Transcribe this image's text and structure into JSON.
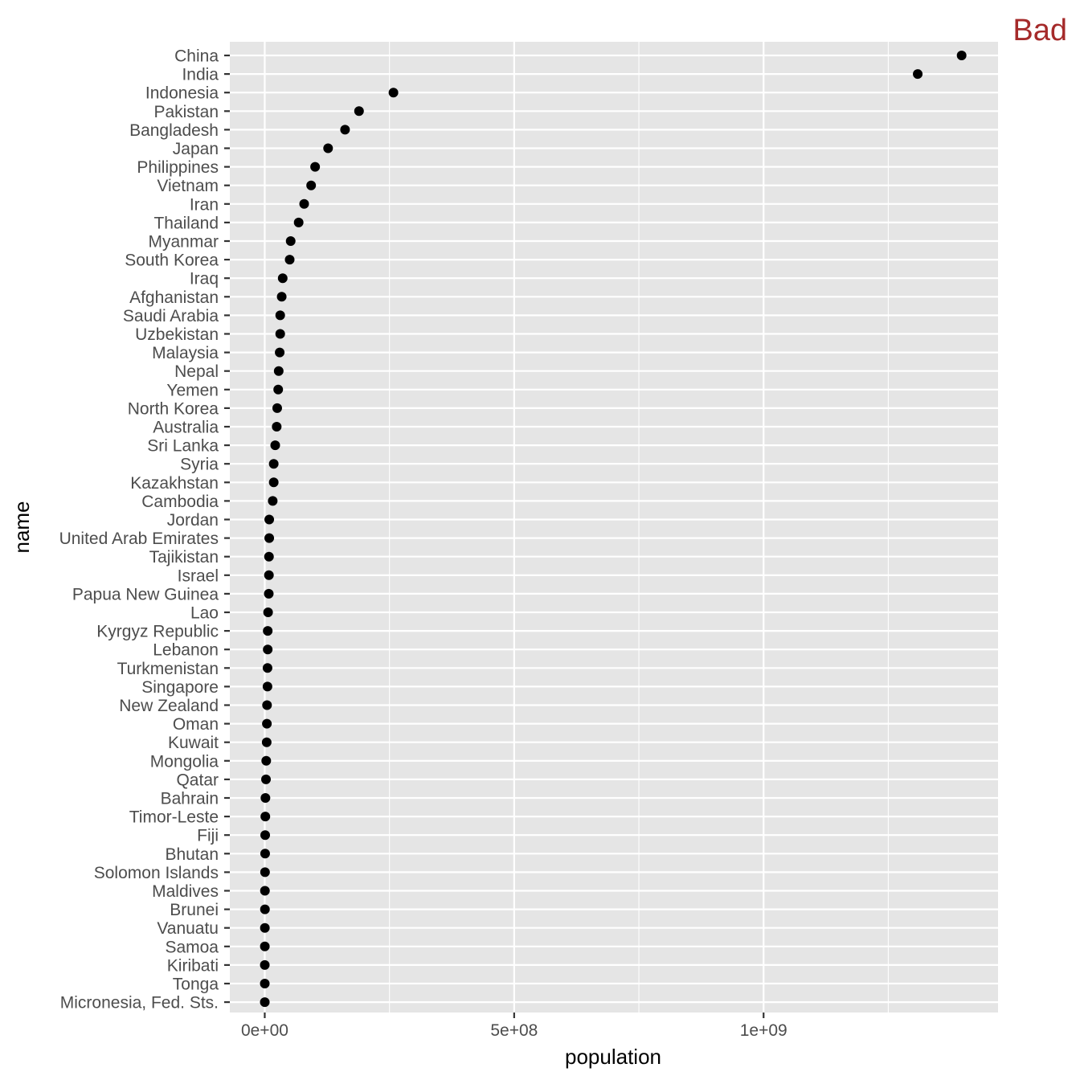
{
  "chart_data": {
    "type": "scatter",
    "title": "Bad",
    "xlabel": "population",
    "ylabel": "name",
    "xlim": [
      -70000000,
      1470000000
    ],
    "x_ticks": [
      {
        "value": 0,
        "label": "0e+00"
      },
      {
        "value": 500000000,
        "label": "5e+08"
      },
      {
        "value": 1000000000,
        "label": "1e+09"
      }
    ],
    "x_minor_ticks": [
      250000000,
      750000000,
      1250000000
    ],
    "grid": true,
    "colors": {
      "panel": "#e5e5e5",
      "grid": "#ffffff",
      "point": "#000000",
      "title": "#a52a2a",
      "tick_label": "#4d4d4d",
      "tick": "#333333"
    },
    "points": [
      {
        "name": "China",
        "population": 1397000000
      },
      {
        "name": "India",
        "population": 1309000000
      },
      {
        "name": "Indonesia",
        "population": 258000000
      },
      {
        "name": "Pakistan",
        "population": 189000000
      },
      {
        "name": "Bangladesh",
        "population": 161000000
      },
      {
        "name": "Japan",
        "population": 127000000
      },
      {
        "name": "Philippines",
        "population": 101000000
      },
      {
        "name": "Vietnam",
        "population": 93000000
      },
      {
        "name": "Iran",
        "population": 79000000
      },
      {
        "name": "Thailand",
        "population": 68000000
      },
      {
        "name": "Myanmar",
        "population": 52000000
      },
      {
        "name": "South Korea",
        "population": 50000000
      },
      {
        "name": "Iraq",
        "population": 36000000
      },
      {
        "name": "Afghanistan",
        "population": 34000000
      },
      {
        "name": "Saudi Arabia",
        "population": 31000000
      },
      {
        "name": "Uzbekistan",
        "population": 31000000
      },
      {
        "name": "Malaysia",
        "population": 30000000
      },
      {
        "name": "Nepal",
        "population": 28000000
      },
      {
        "name": "Yemen",
        "population": 27000000
      },
      {
        "name": "North Korea",
        "population": 25000000
      },
      {
        "name": "Australia",
        "population": 24000000
      },
      {
        "name": "Sri Lanka",
        "population": 21000000
      },
      {
        "name": "Syria",
        "population": 18000000
      },
      {
        "name": "Kazakhstan",
        "population": 18000000
      },
      {
        "name": "Cambodia",
        "population": 16000000
      },
      {
        "name": "Jordan",
        "population": 9000000
      },
      {
        "name": "United Arab Emirates",
        "population": 9000000
      },
      {
        "name": "Tajikistan",
        "population": 8500000
      },
      {
        "name": "Israel",
        "population": 8400000
      },
      {
        "name": "Papua New Guinea",
        "population": 8100000
      },
      {
        "name": "Lao",
        "population": 6700000
      },
      {
        "name": "Kyrgyz Republic",
        "population": 6000000
      },
      {
        "name": "Lebanon",
        "population": 6000000
      },
      {
        "name": "Turkmenistan",
        "population": 5600000
      },
      {
        "name": "Singapore",
        "population": 5500000
      },
      {
        "name": "New Zealand",
        "population": 4600000
      },
      {
        "name": "Oman",
        "population": 4300000
      },
      {
        "name": "Kuwait",
        "population": 3900000
      },
      {
        "name": "Mongolia",
        "population": 3000000
      },
      {
        "name": "Qatar",
        "population": 2500000
      },
      {
        "name": "Bahrain",
        "population": 1400000
      },
      {
        "name": "Timor-Leste",
        "population": 1200000
      },
      {
        "name": "Fiji",
        "population": 890000
      },
      {
        "name": "Bhutan",
        "population": 790000
      },
      {
        "name": "Solomon Islands",
        "population": 590000
      },
      {
        "name": "Maldives",
        "population": 410000
      },
      {
        "name": "Brunei",
        "population": 420000
      },
      {
        "name": "Vanuatu",
        "population": 270000
      },
      {
        "name": "Samoa",
        "population": 190000
      },
      {
        "name": "Kiribati",
        "population": 110000
      },
      {
        "name": "Tonga",
        "population": 107000
      },
      {
        "name": "Micronesia, Fed. Sts.",
        "population": 104000
      }
    ]
  }
}
